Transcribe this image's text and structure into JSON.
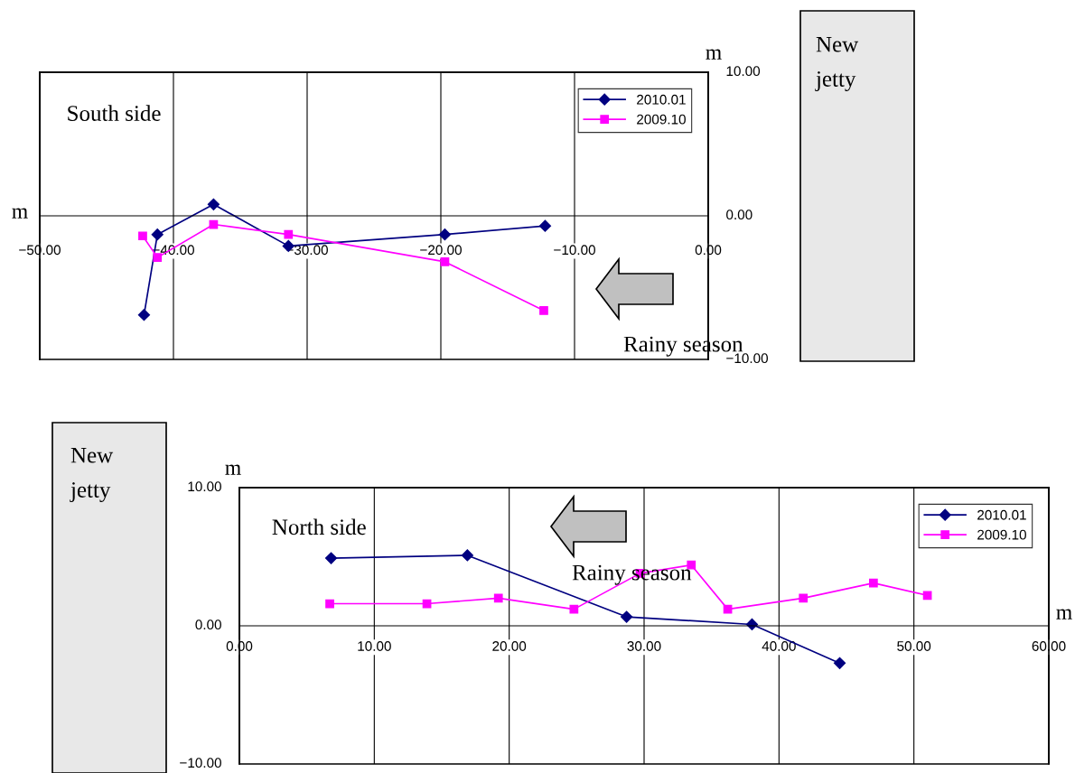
{
  "chart_data": [
    {
      "type": "line",
      "xlabel": "m",
      "ylabel": "m",
      "annotations": [
        "South side",
        "Rainy season",
        "New\njetty"
      ],
      "xlim": [
        -50,
        0
      ],
      "ylim": [
        -10,
        10
      ],
      "xticks": [
        {
          "value": -50,
          "label": "−50.00"
        },
        {
          "value": -40,
          "label": "−40.00"
        },
        {
          "value": -30,
          "label": "−30.00"
        },
        {
          "value": -20,
          "label": "−20.00"
        },
        {
          "value": -10,
          "label": "−10.00"
        },
        {
          "value": 0,
          "label": "0.00"
        }
      ],
      "yticks": [
        {
          "value": -10,
          "label": "−10.00"
        },
        {
          "value": 0,
          "label": "0.00"
        },
        {
          "value": 10,
          "label": "10.00"
        }
      ],
      "grid": "x",
      "legend": "top right",
      "line_style": "solid",
      "series": [
        {
          "name": "2010.01",
          "color": "#000080",
          "marker": "diamond",
          "x": [
            -42.2,
            -41.2,
            -37.0,
            -31.4,
            -19.7,
            -12.2
          ],
          "values": [
            -6.9,
            -1.3,
            0.8,
            -2.1,
            -1.3,
            -0.7
          ]
        },
        {
          "name": "2009.10",
          "color": "#ff00ff",
          "marker": "square",
          "x": [
            -42.3,
            -41.2,
            -37.0,
            -31.4,
            -19.7,
            -12.3
          ],
          "values": [
            -1.4,
            -2.9,
            -0.6,
            -1.3,
            -3.2,
            -6.6
          ]
        }
      ]
    },
    {
      "type": "line",
      "xlabel": "m",
      "ylabel": "m",
      "annotations": [
        "North side",
        "Rainy season",
        "New\njetty"
      ],
      "xlim": [
        0,
        60
      ],
      "ylim": [
        -10,
        10
      ],
      "xticks": [
        {
          "value": 0,
          "label": "0.00"
        },
        {
          "value": 10,
          "label": "10.00"
        },
        {
          "value": 20,
          "label": "20.00"
        },
        {
          "value": 30,
          "label": "30.00"
        },
        {
          "value": 40,
          "label": "40.00"
        },
        {
          "value": 50,
          "label": "50.00"
        },
        {
          "value": 60,
          "label": "60.00"
        }
      ],
      "yticks": [
        {
          "value": -10,
          "label": "−10.00"
        },
        {
          "value": 0,
          "label": "0.00"
        },
        {
          "value": 10,
          "label": "10.00"
        }
      ],
      "grid": "x",
      "legend": "top right",
      "line_style": "solid",
      "series": [
        {
          "name": "2010.01",
          "color": "#000080",
          "marker": "diamond",
          "x": [
            6.8,
            16.9,
            28.7,
            38.0,
            44.5
          ],
          "values": [
            4.9,
            5.1,
            0.65,
            0.1,
            -2.7
          ]
        },
        {
          "name": "2009.10",
          "color": "#ff00ff",
          "marker": "square",
          "x": [
            6.7,
            13.9,
            19.2,
            24.8,
            29.7,
            33.5,
            36.2,
            41.8,
            47.0,
            51.0
          ],
          "values": [
            1.6,
            1.6,
            2.0,
            1.2,
            3.8,
            4.4,
            1.2,
            2.0,
            3.1,
            2.2
          ]
        }
      ]
    }
  ]
}
